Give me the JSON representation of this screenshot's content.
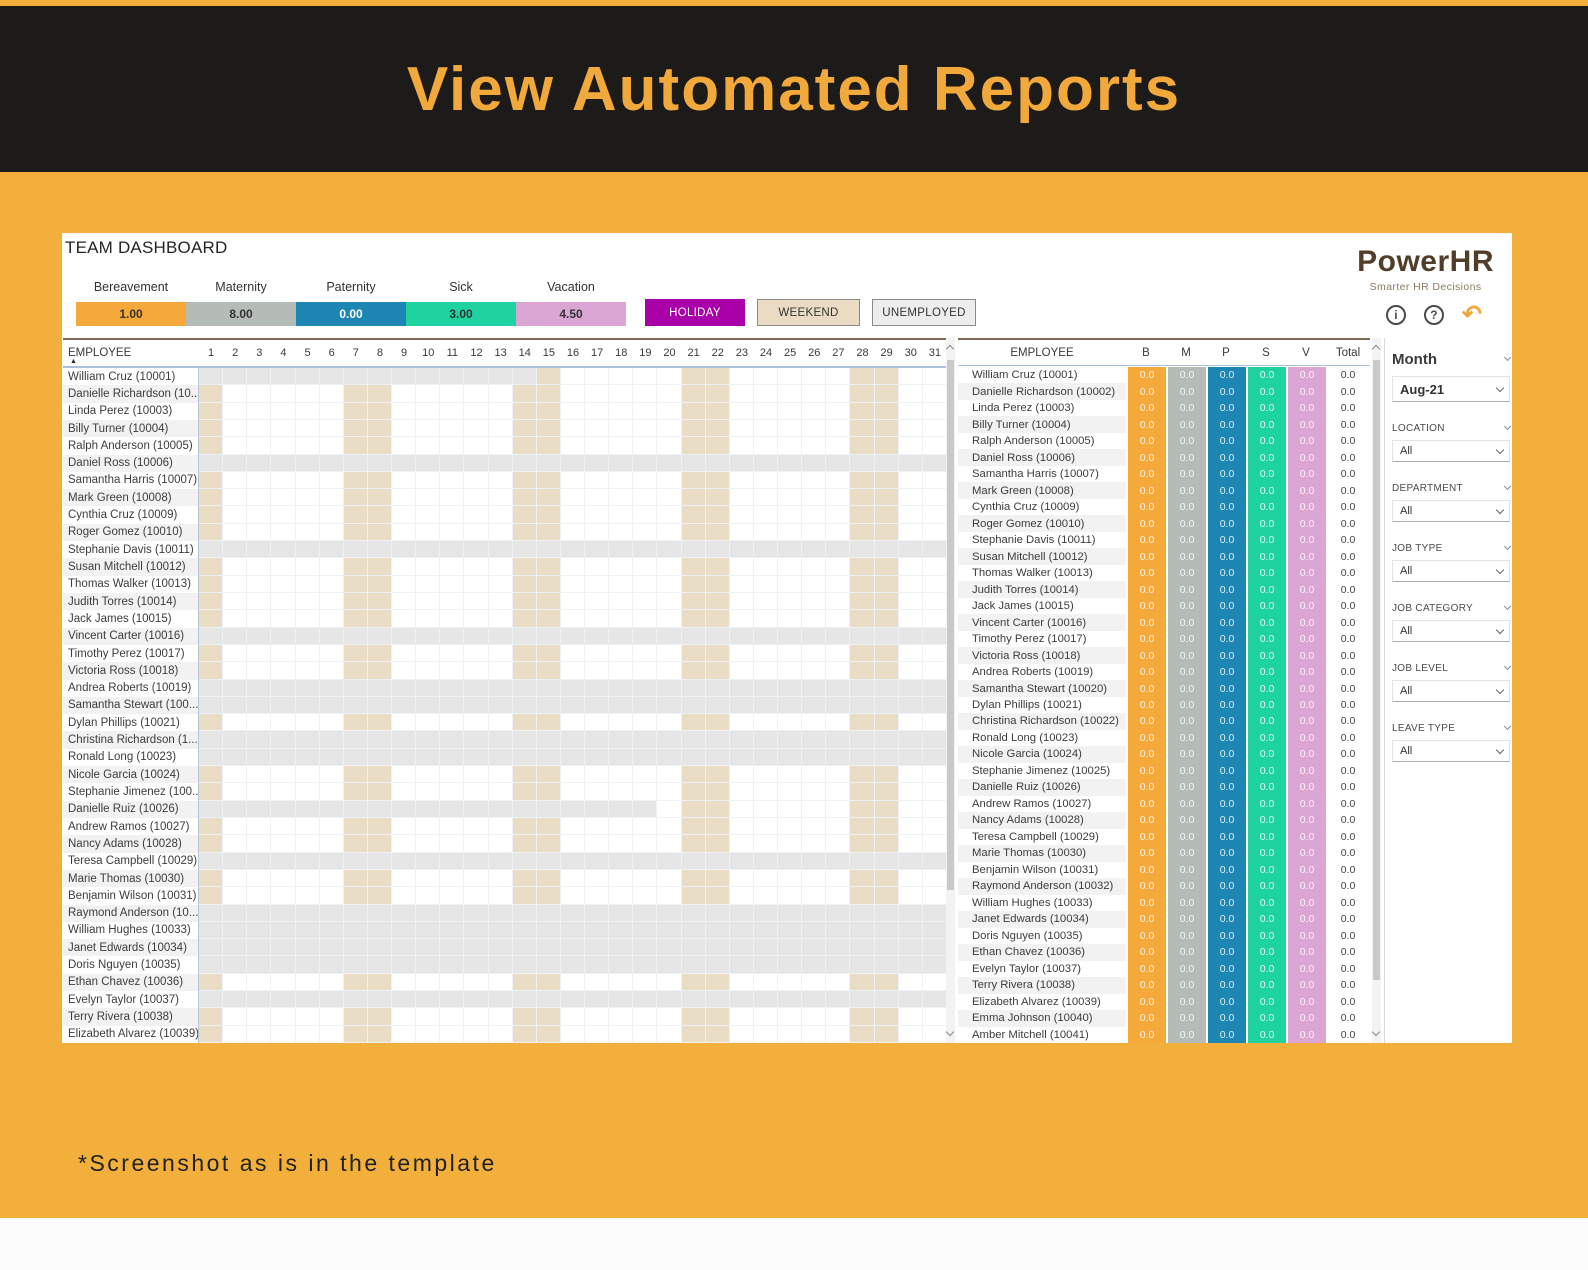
{
  "banner": {
    "title": "View Automated Reports"
  },
  "footnote": "*Screenshot as is in the template",
  "dashboard": {
    "title": "TEAM DASHBOARD",
    "brand": {
      "name": "PowerHR",
      "tagline": "Smarter HR Decisions"
    },
    "legend": [
      {
        "label": "Bereavement",
        "value": "1.00",
        "color": "#F5A93B",
        "text": "#333333"
      },
      {
        "label": "Maternity",
        "value": "8.00",
        "color": "#B5BCB8",
        "text": "#333333"
      },
      {
        "label": "Paternity",
        "value": "0.00",
        "color": "#1E86B2",
        "text": "#FFFFFF"
      },
      {
        "label": "Sick",
        "value": "3.00",
        "color": "#1FD3A0",
        "text": "#333333"
      },
      {
        "label": "Vacation",
        "value": "4.50",
        "color": "#DCA6D4",
        "text": "#333333"
      }
    ],
    "state_buttons": [
      {
        "label": "HOLIDAY",
        "bg": "#AA00AA",
        "text": "#FFFFFF",
        "border": "none"
      },
      {
        "label": "WEEKEND",
        "bg": "#EADCC4",
        "text": "#333333",
        "border": "#8a8a8a"
      },
      {
        "label": "UNEMPLOYED",
        "bg": "#EDEDED",
        "text": "#333333",
        "border": "#8a8a8a"
      }
    ],
    "toolbar_icons": [
      "info-icon",
      "help-icon",
      "undo-icon"
    ],
    "calendar": {
      "employee_header": "EMPLOYEE",
      "days": [
        1,
        2,
        3,
        4,
        5,
        6,
        7,
        8,
        9,
        10,
        11,
        12,
        13,
        14,
        15,
        16,
        17,
        18,
        19,
        20,
        21,
        22,
        23,
        24,
        25,
        26,
        27,
        28,
        29,
        30,
        31
      ],
      "weekend_days": [
        1,
        7,
        8,
        14,
        15,
        21,
        22,
        28,
        29
      ],
      "rows": [
        {
          "name": "William Cruz (10001)",
          "status": "partial",
          "gray_until": 14
        },
        {
          "name": "Danielle Richardson (10...",
          "status": "normal"
        },
        {
          "name": "Linda Perez (10003)",
          "status": "normal"
        },
        {
          "name": "Billy Turner (10004)",
          "status": "normal"
        },
        {
          "name": "Ralph Anderson (10005)",
          "status": "normal"
        },
        {
          "name": "Daniel Ross (10006)",
          "status": "unemployed"
        },
        {
          "name": "Samantha Harris (10007)",
          "status": "normal"
        },
        {
          "name": "Mark Green (10008)",
          "status": "normal"
        },
        {
          "name": "Cynthia Cruz (10009)",
          "status": "normal"
        },
        {
          "name": "Roger Gomez (10010)",
          "status": "normal"
        },
        {
          "name": "Stephanie Davis (10011)",
          "status": "unemployed"
        },
        {
          "name": "Susan Mitchell (10012)",
          "status": "normal"
        },
        {
          "name": "Thomas Walker (10013)",
          "status": "normal"
        },
        {
          "name": "Judith Torres (10014)",
          "status": "normal"
        },
        {
          "name": "Jack James (10015)",
          "status": "normal"
        },
        {
          "name": "Vincent Carter (10016)",
          "status": "unemployed"
        },
        {
          "name": "Timothy Perez (10017)",
          "status": "normal"
        },
        {
          "name": "Victoria Ross (10018)",
          "status": "normal"
        },
        {
          "name": "Andrea Roberts (10019)",
          "status": "unemployed"
        },
        {
          "name": "Samantha Stewart (100...",
          "status": "unemployed"
        },
        {
          "name": "Dylan Phillips (10021)",
          "status": "normal"
        },
        {
          "name": "Christina Richardson (1...",
          "status": "unemployed"
        },
        {
          "name": "Ronald Long (10023)",
          "status": "unemployed"
        },
        {
          "name": "Nicole Garcia (10024)",
          "status": "normal"
        },
        {
          "name": "Stephanie Jimenez (100...",
          "status": "normal"
        },
        {
          "name": "Danielle Ruiz (10026)",
          "status": "partial",
          "gray_until": 19
        },
        {
          "name": "Andrew Ramos (10027)",
          "status": "normal"
        },
        {
          "name": "Nancy Adams (10028)",
          "status": "normal"
        },
        {
          "name": "Teresa Campbell (10029)",
          "status": "unemployed"
        },
        {
          "name": "Marie Thomas (10030)",
          "status": "normal"
        },
        {
          "name": "Benjamin Wilson (10031)",
          "status": "normal"
        },
        {
          "name": "Raymond Anderson (10...",
          "status": "unemployed"
        },
        {
          "name": "William Hughes (10033)",
          "status": "unemployed"
        },
        {
          "name": "Janet Edwards (10034)",
          "status": "unemployed"
        },
        {
          "name": "Doris Nguyen (10035)",
          "status": "unemployed"
        },
        {
          "name": "Ethan Chavez (10036)",
          "status": "normal"
        },
        {
          "name": "Evelyn Taylor (10037)",
          "status": "unemployed"
        },
        {
          "name": "Terry Rivera (10038)",
          "status": "normal"
        },
        {
          "name": "Elizabeth Alvarez (10039)",
          "status": "normal"
        }
      ]
    },
    "summary": {
      "columns": [
        "EMPLOYEE",
        "B",
        "M",
        "P",
        "S",
        "V",
        "Total"
      ],
      "col_colors": [
        "#F5A93B",
        "#B5BCB8",
        "#1E86B2",
        "#1FD3A0",
        "#DCA6D4"
      ],
      "rows": [
        {
          "name": "William Cruz (10001)",
          "values": [
            "0.0",
            "0.0",
            "0.0",
            "0.0",
            "0.0",
            "0.0"
          ]
        },
        {
          "name": "Danielle Richardson (10002)",
          "values": [
            "0.0",
            "0.0",
            "0.0",
            "0.0",
            "0.0",
            "0.0"
          ]
        },
        {
          "name": "Linda Perez (10003)",
          "values": [
            "0.0",
            "0.0",
            "0.0",
            "0.0",
            "0.0",
            "0.0"
          ]
        },
        {
          "name": "Billy Turner (10004)",
          "values": [
            "0.0",
            "0.0",
            "0.0",
            "0.0",
            "0.0",
            "0.0"
          ]
        },
        {
          "name": "Ralph Anderson (10005)",
          "values": [
            "0.0",
            "0.0",
            "0.0",
            "0.0",
            "0.0",
            "0.0"
          ]
        },
        {
          "name": "Daniel Ross (10006)",
          "values": [
            "0.0",
            "0.0",
            "0.0",
            "0.0",
            "0.0",
            "0.0"
          ]
        },
        {
          "name": "Samantha Harris (10007)",
          "values": [
            "0.0",
            "0.0",
            "0.0",
            "0.0",
            "0.0",
            "0.0"
          ]
        },
        {
          "name": "Mark Green (10008)",
          "values": [
            "0.0",
            "0.0",
            "0.0",
            "0.0",
            "0.0",
            "0.0"
          ]
        },
        {
          "name": "Cynthia Cruz (10009)",
          "values": [
            "0.0",
            "0.0",
            "0.0",
            "0.0",
            "0.0",
            "0.0"
          ]
        },
        {
          "name": "Roger Gomez (10010)",
          "values": [
            "0.0",
            "0.0",
            "0.0",
            "0.0",
            "0.0",
            "0.0"
          ]
        },
        {
          "name": "Stephanie Davis (10011)",
          "values": [
            "0.0",
            "0.0",
            "0.0",
            "0.0",
            "0.0",
            "0.0"
          ]
        },
        {
          "name": "Susan Mitchell (10012)",
          "values": [
            "0.0",
            "0.0",
            "0.0",
            "0.0",
            "0.0",
            "0.0"
          ]
        },
        {
          "name": "Thomas Walker (10013)",
          "values": [
            "0.0",
            "0.0",
            "0.0",
            "0.0",
            "0.0",
            "0.0"
          ]
        },
        {
          "name": "Judith Torres (10014)",
          "values": [
            "0.0",
            "0.0",
            "0.0",
            "0.0",
            "0.0",
            "0.0"
          ]
        },
        {
          "name": "Jack James (10015)",
          "values": [
            "0.0",
            "0.0",
            "0.0",
            "0.0",
            "0.0",
            "0.0"
          ]
        },
        {
          "name": "Vincent Carter (10016)",
          "values": [
            "0.0",
            "0.0",
            "0.0",
            "0.0",
            "0.0",
            "0.0"
          ]
        },
        {
          "name": "Timothy Perez (10017)",
          "values": [
            "0.0",
            "0.0",
            "0.0",
            "0.0",
            "0.0",
            "0.0"
          ]
        },
        {
          "name": "Victoria Ross (10018)",
          "values": [
            "0.0",
            "0.0",
            "0.0",
            "0.0",
            "0.0",
            "0.0"
          ]
        },
        {
          "name": "Andrea Roberts (10019)",
          "values": [
            "0.0",
            "0.0",
            "0.0",
            "0.0",
            "0.0",
            "0.0"
          ]
        },
        {
          "name": "Samantha Stewart (10020)",
          "values": [
            "0.0",
            "0.0",
            "0.0",
            "0.0",
            "0.0",
            "0.0"
          ]
        },
        {
          "name": "Dylan Phillips (10021)",
          "values": [
            "0.0",
            "0.0",
            "0.0",
            "0.0",
            "0.0",
            "0.0"
          ]
        },
        {
          "name": "Christina Richardson (10022)",
          "values": [
            "0.0",
            "0.0",
            "0.0",
            "0.0",
            "0.0",
            "0.0"
          ]
        },
        {
          "name": "Ronald Long (10023)",
          "values": [
            "0.0",
            "0.0",
            "0.0",
            "0.0",
            "0.0",
            "0.0"
          ]
        },
        {
          "name": "Nicole Garcia (10024)",
          "values": [
            "0.0",
            "0.0",
            "0.0",
            "0.0",
            "0.0",
            "0.0"
          ]
        },
        {
          "name": "Stephanie Jimenez (10025)",
          "values": [
            "0.0",
            "0.0",
            "0.0",
            "0.0",
            "0.0",
            "0.0"
          ]
        },
        {
          "name": "Danielle Ruiz (10026)",
          "values": [
            "0.0",
            "0.0",
            "0.0",
            "0.0",
            "0.0",
            "0.0"
          ]
        },
        {
          "name": "Andrew Ramos (10027)",
          "values": [
            "0.0",
            "0.0",
            "0.0",
            "0.0",
            "0.0",
            "0.0"
          ]
        },
        {
          "name": "Nancy Adams (10028)",
          "values": [
            "0.0",
            "0.0",
            "0.0",
            "0.0",
            "0.0",
            "0.0"
          ]
        },
        {
          "name": "Teresa Campbell (10029)",
          "values": [
            "0.0",
            "0.0",
            "0.0",
            "0.0",
            "0.0",
            "0.0"
          ]
        },
        {
          "name": "Marie Thomas (10030)",
          "values": [
            "0.0",
            "0.0",
            "0.0",
            "0.0",
            "0.0",
            "0.0"
          ]
        },
        {
          "name": "Benjamin Wilson (10031)",
          "values": [
            "0.0",
            "0.0",
            "0.0",
            "0.0",
            "0.0",
            "0.0"
          ]
        },
        {
          "name": "Raymond Anderson (10032)",
          "values": [
            "0.0",
            "0.0",
            "0.0",
            "0.0",
            "0.0",
            "0.0"
          ]
        },
        {
          "name": "William Hughes (10033)",
          "values": [
            "0.0",
            "0.0",
            "0.0",
            "0.0",
            "0.0",
            "0.0"
          ]
        },
        {
          "name": "Janet Edwards (10034)",
          "values": [
            "0.0",
            "0.0",
            "0.0",
            "0.0",
            "0.0",
            "0.0"
          ]
        },
        {
          "name": "Doris Nguyen (10035)",
          "values": [
            "0.0",
            "0.0",
            "0.0",
            "0.0",
            "0.0",
            "0.0"
          ]
        },
        {
          "name": "Ethan Chavez (10036)",
          "values": [
            "0.0",
            "0.0",
            "0.0",
            "0.0",
            "0.0",
            "0.0"
          ]
        },
        {
          "name": "Evelyn Taylor (10037)",
          "values": [
            "0.0",
            "0.0",
            "0.0",
            "0.0",
            "0.0",
            "0.0"
          ]
        },
        {
          "name": "Terry Rivera (10038)",
          "values": [
            "0.0",
            "0.0",
            "0.0",
            "0.0",
            "0.0",
            "0.0"
          ]
        },
        {
          "name": "Elizabeth Alvarez (10039)",
          "values": [
            "0.0",
            "0.0",
            "0.0",
            "0.0",
            "0.0",
            "0.0"
          ]
        },
        {
          "name": "Emma Johnson (10040)",
          "values": [
            "0.0",
            "0.0",
            "0.0",
            "0.0",
            "0.0",
            "0.0"
          ]
        },
        {
          "name": "Amber Mitchell (10041)",
          "values": [
            "0.0",
            "0.0",
            "0.0",
            "0.0",
            "0.0",
            "0.0"
          ]
        }
      ]
    },
    "filters": {
      "month": {
        "label": "Month",
        "value": "Aug-21"
      },
      "items": [
        {
          "label": "LOCATION",
          "value": "All"
        },
        {
          "label": "DEPARTMENT",
          "value": "All"
        },
        {
          "label": "JOB TYPE",
          "value": "All"
        },
        {
          "label": "JOB CATEGORY",
          "value": "All"
        },
        {
          "label": "JOB LEVEL",
          "value": "All"
        },
        {
          "label": "LEAVE TYPE",
          "value": "All"
        }
      ]
    }
  }
}
